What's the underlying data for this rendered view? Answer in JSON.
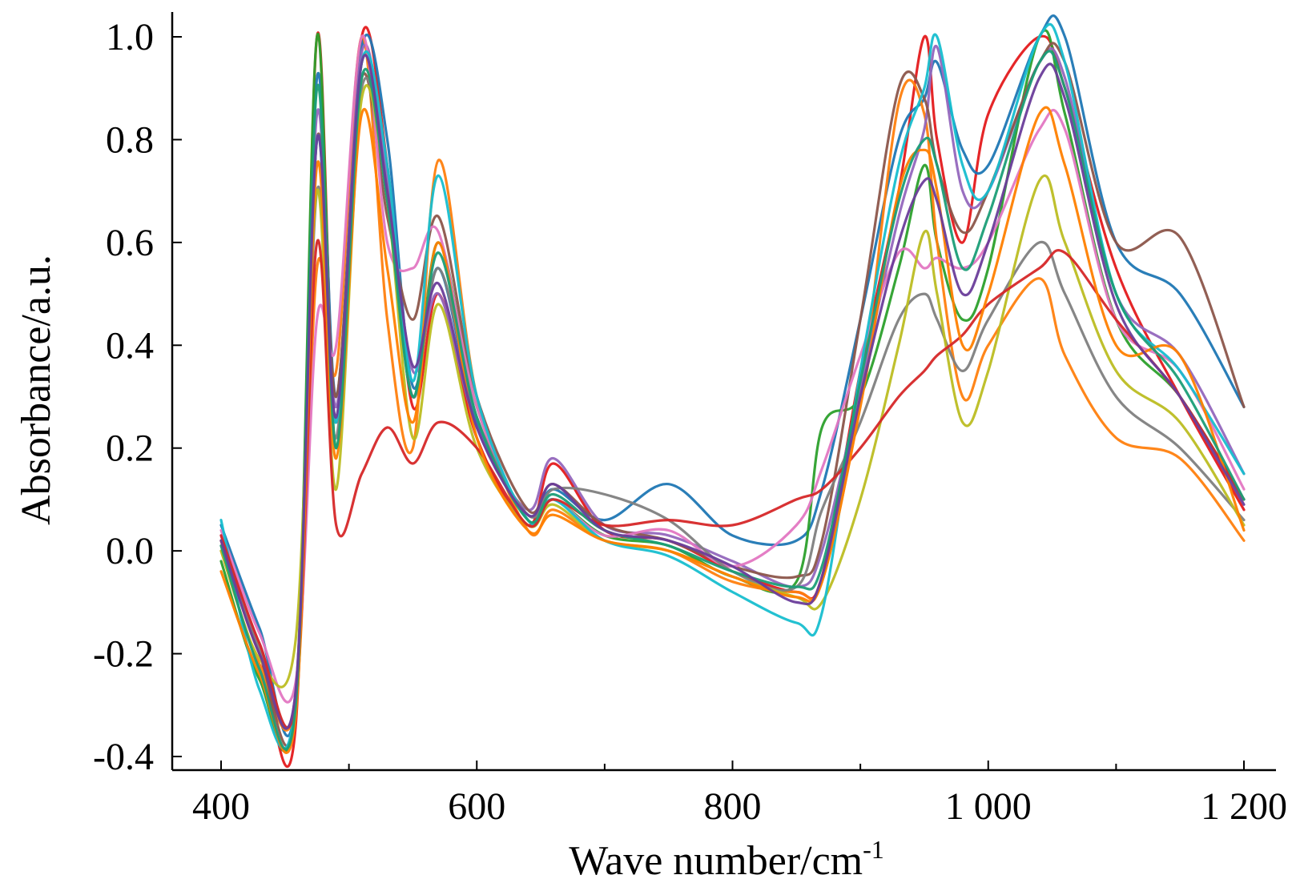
{
  "chart_data": {
    "type": "line",
    "title": "",
    "xlabel": "Wave number/cm",
    "xlabel_superscript": "-1",
    "ylabel": "Absorbance/a.u.",
    "xlim": [
      400,
      1200
    ],
    "ylim": [
      -0.4,
      1.0
    ],
    "x_ticks": [
      400,
      600,
      800,
      1000,
      1200
    ],
    "x_tick_labels": [
      "400",
      "600",
      "800",
      "1 000",
      "1 200"
    ],
    "x_minor_ticks": [
      500,
      700,
      900,
      1100
    ],
    "y_ticks": [
      -0.4,
      -0.2,
      0.0,
      0.2,
      0.4,
      0.6,
      0.8,
      1.0
    ],
    "y_tick_labels": [
      "-0.4",
      "-0.2",
      "0.0",
      "0.2",
      "0.4",
      "0.6",
      "0.8",
      "1.0"
    ],
    "grid": false,
    "legend": "none",
    "colors": [
      "#e41a1c",
      "#1f77b4",
      "#2ca02c",
      "#ff7f0e",
      "#9467bd",
      "#8c564b",
      "#e377c2",
      "#7f7f7f",
      "#bcbd22",
      "#17becf",
      "#d62728",
      "#ff7f00",
      "#1b9e77",
      "#6a3d9a"
    ],
    "series": [
      {
        "color": "#e41a1c",
        "x": [
          400,
          430,
          458,
          475,
          490,
          510,
          530,
          550,
          570,
          600,
          640,
          660,
          700,
          750,
          800,
          850,
          870,
          900,
          930,
          950,
          960,
          980,
          1000,
          1040,
          1060,
          1100,
          1150,
          1200
        ],
        "y": [
          0.02,
          -0.2,
          -0.35,
          1.0,
          0.25,
          1.0,
          0.75,
          0.28,
          0.5,
          0.22,
          0.05,
          0.17,
          0.04,
          0.02,
          -0.04,
          -0.08,
          -0.05,
          0.35,
          0.7,
          1.0,
          0.8,
          0.6,
          0.85,
          1.0,
          0.9,
          0.55,
          0.3,
          0.08
        ]
      },
      {
        "color": "#1f77b4",
        "x": [
          400,
          430,
          458,
          475,
          490,
          510,
          530,
          550,
          570,
          600,
          640,
          660,
          700,
          750,
          800,
          850,
          870,
          900,
          930,
          950,
          960,
          980,
          1000,
          1040,
          1060,
          1100,
          1150,
          1200
        ],
        "y": [
          0.05,
          -0.15,
          -0.3,
          0.92,
          0.3,
          0.98,
          0.8,
          0.32,
          0.55,
          0.25,
          0.07,
          0.12,
          0.06,
          0.13,
          0.03,
          0.02,
          0.12,
          0.45,
          0.8,
          0.88,
          0.95,
          0.78,
          0.75,
          1.0,
          1.0,
          0.6,
          0.5,
          0.28
        ]
      },
      {
        "color": "#2ca02c",
        "x": [
          400,
          430,
          458,
          475,
          490,
          510,
          530,
          550,
          570,
          600,
          640,
          660,
          700,
          750,
          800,
          850,
          870,
          900,
          930,
          950,
          960,
          980,
          1000,
          1040,
          1060,
          1100,
          1150,
          1200
        ],
        "y": [
          -0.02,
          -0.25,
          -0.3,
          1.0,
          0.2,
          0.95,
          0.7,
          0.3,
          0.6,
          0.28,
          0.06,
          0.1,
          0.03,
          0.01,
          -0.05,
          -0.06,
          0.24,
          0.3,
          0.55,
          0.75,
          0.6,
          0.45,
          0.55,
          1.0,
          0.85,
          0.45,
          0.3,
          0.1
        ]
      },
      {
        "color": "#ff7f0e",
        "x": [
          400,
          430,
          458,
          475,
          490,
          510,
          530,
          550,
          570,
          600,
          640,
          660,
          700,
          750,
          800,
          850,
          870,
          900,
          930,
          950,
          960,
          980,
          1000,
          1040,
          1060,
          1100,
          1150,
          1200
        ],
        "y": [
          0.0,
          -0.22,
          -0.3,
          0.55,
          0.35,
          1.0,
          0.45,
          0.2,
          0.76,
          0.3,
          0.04,
          0.08,
          0.02,
          0.0,
          -0.06,
          -0.08,
          -0.06,
          0.3,
          0.87,
          0.85,
          0.6,
          0.3,
          0.4,
          0.53,
          0.38,
          0.22,
          0.18,
          0.02
        ]
      },
      {
        "color": "#9467bd",
        "x": [
          400,
          430,
          458,
          475,
          490,
          510,
          530,
          550,
          570,
          600,
          640,
          660,
          700,
          750,
          800,
          850,
          870,
          900,
          930,
          950,
          960,
          980,
          1000,
          1040,
          1060,
          1100,
          1150,
          1200
        ],
        "y": [
          0.03,
          -0.18,
          -0.28,
          0.85,
          0.28,
          0.97,
          0.72,
          0.35,
          0.5,
          0.24,
          0.08,
          0.18,
          0.05,
          0.03,
          -0.02,
          -0.07,
          0.0,
          0.32,
          0.65,
          0.82,
          0.98,
          0.7,
          0.7,
          0.95,
          0.92,
          0.5,
          0.38,
          0.15
        ]
      },
      {
        "color": "#8c564b",
        "x": [
          400,
          430,
          458,
          475,
          490,
          510,
          530,
          550,
          570,
          600,
          640,
          660,
          700,
          750,
          800,
          850,
          870,
          900,
          930,
          950,
          960,
          980,
          1000,
          1040,
          1060,
          1100,
          1150,
          1200
        ],
        "y": [
          0.02,
          -0.2,
          -0.32,
          0.8,
          0.3,
          0.92,
          0.65,
          0.45,
          0.65,
          0.3,
          0.08,
          0.13,
          0.05,
          0.02,
          -0.03,
          -0.05,
          0.02,
          0.45,
          0.9,
          0.88,
          0.75,
          0.62,
          0.7,
          0.95,
          0.95,
          0.6,
          0.61,
          0.28
        ]
      },
      {
        "color": "#e377c2",
        "x": [
          400,
          430,
          458,
          475,
          490,
          510,
          530,
          550,
          570,
          600,
          640,
          660,
          700,
          750,
          800,
          850,
          870,
          900,
          930,
          950,
          960,
          980,
          1000,
          1040,
          1060,
          1100,
          1150,
          1200
        ],
        "y": [
          0.04,
          -0.16,
          -0.26,
          0.45,
          0.4,
          1.0,
          0.6,
          0.55,
          0.62,
          0.28,
          0.06,
          0.1,
          0.03,
          0.04,
          -0.03,
          0.05,
          0.16,
          0.38,
          0.58,
          0.55,
          0.57,
          0.55,
          0.6,
          0.82,
          0.82,
          0.45,
          0.35,
          0.12
        ]
      },
      {
        "color": "#7f7f7f",
        "x": [
          400,
          430,
          458,
          475,
          490,
          510,
          530,
          550,
          570,
          600,
          640,
          660,
          700,
          750,
          800,
          850,
          870,
          900,
          930,
          950,
          960,
          980,
          1000,
          1040,
          1060,
          1100,
          1150,
          1200
        ],
        "y": [
          0.01,
          -0.19,
          -0.29,
          0.7,
          0.22,
          0.9,
          0.7,
          0.3,
          0.55,
          0.26,
          0.07,
          0.12,
          0.11,
          0.06,
          -0.04,
          -0.07,
          0.08,
          0.25,
          0.45,
          0.5,
          0.45,
          0.35,
          0.45,
          0.6,
          0.5,
          0.3,
          0.2,
          0.06
        ]
      },
      {
        "color": "#bcbd22",
        "x": [
          400,
          430,
          458,
          475,
          490,
          510,
          530,
          550,
          570,
          600,
          640,
          660,
          700,
          750,
          800,
          850,
          870,
          900,
          930,
          950,
          960,
          980,
          1000,
          1040,
          1060,
          1100,
          1150,
          1200
        ],
        "y": [
          0.0,
          -0.21,
          -0.18,
          0.7,
          0.12,
          0.88,
          0.68,
          0.22,
          0.48,
          0.2,
          0.05,
          0.09,
          0.02,
          0.0,
          -0.05,
          -0.09,
          -0.1,
          0.1,
          0.4,
          0.62,
          0.5,
          0.25,
          0.35,
          0.72,
          0.6,
          0.35,
          0.25,
          0.05
        ]
      },
      {
        "color": "#17becf",
        "x": [
          400,
          430,
          458,
          475,
          490,
          510,
          530,
          550,
          570,
          600,
          640,
          660,
          700,
          750,
          800,
          850,
          870,
          900,
          930,
          950,
          960,
          980,
          1000,
          1040,
          1060,
          1100,
          1150,
          1200
        ],
        "y": [
          0.06,
          -0.27,
          -0.3,
          0.8,
          0.25,
          0.95,
          0.75,
          0.33,
          0.73,
          0.3,
          0.06,
          0.1,
          0.02,
          -0.01,
          -0.08,
          -0.14,
          -0.12,
          0.35,
          0.75,
          0.9,
          1.0,
          0.75,
          0.7,
          1.0,
          0.95,
          0.5,
          0.35,
          0.15
        ]
      },
      {
        "color": "#d62728",
        "x": [
          400,
          430,
          458,
          475,
          490,
          510,
          530,
          550,
          570,
          600,
          640,
          660,
          700,
          750,
          800,
          850,
          870,
          900,
          930,
          950,
          960,
          980,
          1000,
          1040,
          1060,
          1100,
          1150,
          1200
        ],
        "y": [
          0.03,
          -0.18,
          -0.3,
          0.6,
          0.05,
          0.15,
          0.24,
          0.17,
          0.25,
          0.2,
          0.05,
          0.1,
          0.05,
          0.06,
          0.05,
          0.1,
          0.12,
          0.2,
          0.3,
          0.35,
          0.38,
          0.42,
          0.48,
          0.55,
          0.58,
          0.45,
          0.3,
          0.1
        ]
      },
      {
        "color": "#ff7f00",
        "x": [
          400,
          430,
          458,
          475,
          490,
          510,
          530,
          550,
          570,
          600,
          640,
          660,
          700,
          750,
          800,
          850,
          870,
          900,
          930,
          950,
          960,
          980,
          1000,
          1040,
          1060,
          1100,
          1150,
          1200
        ],
        "y": [
          -0.04,
          -0.24,
          -0.33,
          0.75,
          0.18,
          0.85,
          0.55,
          0.25,
          0.6,
          0.22,
          0.04,
          0.07,
          0.02,
          0.0,
          -0.05,
          -0.09,
          -0.06,
          0.28,
          0.7,
          0.78,
          0.7,
          0.4,
          0.5,
          0.85,
          0.75,
          0.4,
          0.38,
          0.04
        ]
      },
      {
        "color": "#1b9e77",
        "x": [
          400,
          430,
          458,
          475,
          490,
          510,
          530,
          550,
          570,
          600,
          640,
          660,
          700,
          750,
          800,
          850,
          870,
          900,
          930,
          950,
          960,
          980,
          1000,
          1040,
          1060,
          1100,
          1150,
          1200
        ],
        "y": [
          0.01,
          -0.23,
          -0.31,
          0.9,
          0.2,
          0.92,
          0.68,
          0.3,
          0.58,
          0.26,
          0.06,
          0.11,
          0.04,
          0.01,
          -0.04,
          -0.07,
          -0.03,
          0.33,
          0.68,
          0.8,
          0.75,
          0.55,
          0.65,
          0.95,
          0.9,
          0.5,
          0.33,
          0.1
        ]
      },
      {
        "color": "#6a3d9a",
        "x": [
          400,
          430,
          458,
          475,
          490,
          510,
          530,
          550,
          570,
          600,
          640,
          660,
          700,
          750,
          800,
          850,
          870,
          900,
          930,
          950,
          960,
          980,
          1000,
          1040,
          1060,
          1100,
          1150,
          1200
        ],
        "y": [
          0.02,
          -0.2,
          -0.28,
          0.8,
          0.26,
          0.95,
          0.7,
          0.36,
          0.52,
          0.24,
          0.07,
          0.13,
          0.04,
          0.02,
          -0.03,
          -0.1,
          -0.05,
          0.3,
          0.6,
          0.72,
          0.68,
          0.5,
          0.6,
          0.92,
          0.88,
          0.48,
          0.3,
          0.09
        ]
      }
    ]
  }
}
